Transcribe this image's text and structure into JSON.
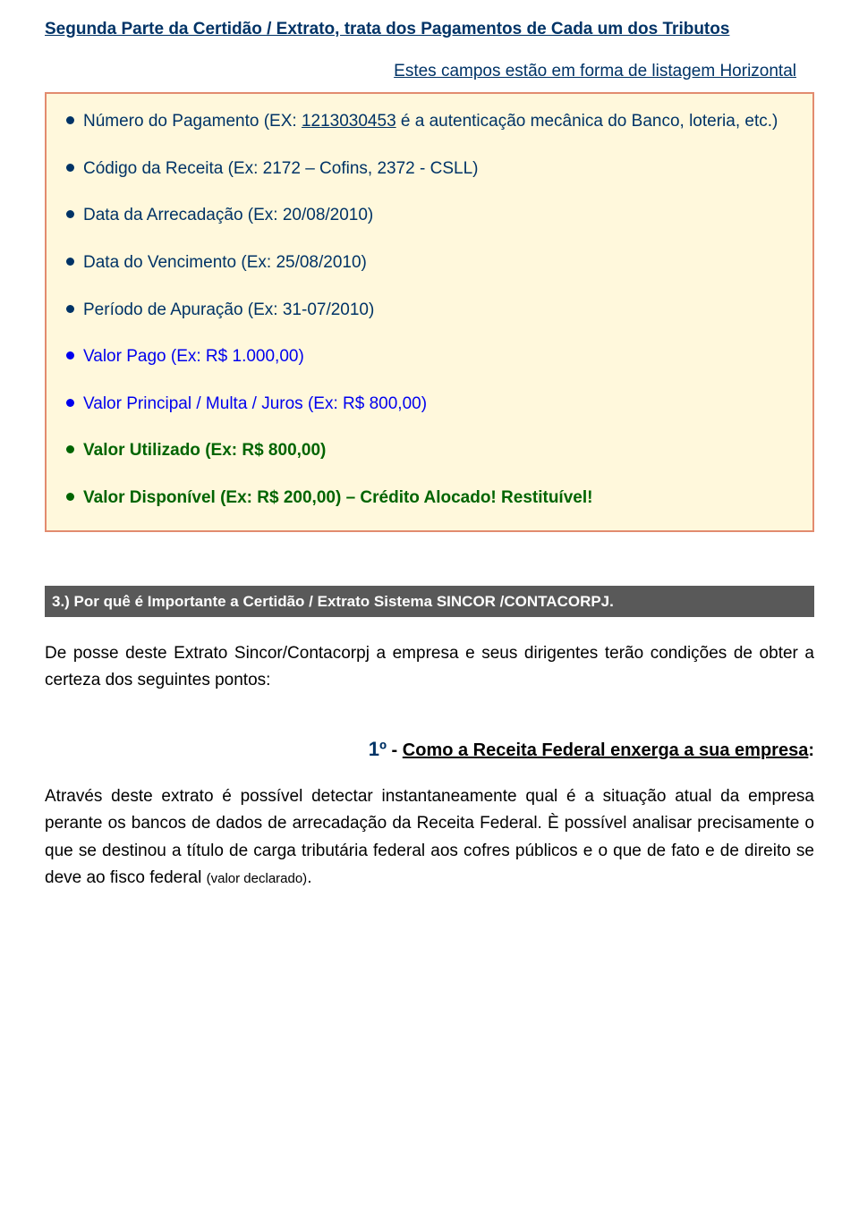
{
  "heading_main": "Segunda Parte da Certidão / Extrato, trata dos Pagamentos de Cada um dos Tributos",
  "sub_note": "Estes campos estão em forma de listagem Horizontal",
  "colors": {
    "dark_blue": "#003366",
    "blue": "#0000ee",
    "green": "#006400",
    "box_bg": "#fff8dc",
    "box_border": "#e28b6f",
    "section_bar_bg": "#595959"
  },
  "bullets": [
    {
      "color": "#003366",
      "text_class": "dark-blue",
      "bold": false,
      "prefix": "Número do Pagamento (EX: ",
      "underline": "1213030453",
      "suffix": " é a autenticação mecânica do Banco, loteria, etc.)"
    },
    {
      "color": "#003366",
      "text_class": "dark-blue",
      "bold": false,
      "text": "Código da Receita (Ex: 2172 – Cofins, 2372 - CSLL)"
    },
    {
      "color": "#003366",
      "text_class": "dark-blue",
      "bold": false,
      "text": "Data da Arrecadação (Ex: 20/08/2010)"
    },
    {
      "color": "#003366",
      "text_class": "dark-blue",
      "bold": false,
      "text": "Data do Vencimento (Ex: 25/08/2010)"
    },
    {
      "color": "#003366",
      "text_class": "dark-blue",
      "bold": false,
      "text": "Período de Apuração (Ex: 31-07/2010)"
    },
    {
      "color": "#0000ee",
      "text_class": "blue",
      "bold": false,
      "text": "Valor Pago (Ex: R$ 1.000,00)"
    },
    {
      "color": "#0000ee",
      "text_class": "blue",
      "bold": false,
      "text": "Valor Principal / Multa / Juros (Ex: R$ 800,00)"
    },
    {
      "color": "#006400",
      "text_class": "green",
      "bold": true,
      "text": "Valor Utilizado (Ex: R$ 800,00)"
    },
    {
      "color": "#006400",
      "text_class": "green",
      "bold": true,
      "text": "Valor Disponível (Ex: R$ 200,00) – Crédito Alocado! Restituível!"
    }
  ],
  "section3_title": "3.) Por quê  é Importante a Certidão / Extrato  Sistema SINCOR /CONTACORPJ.",
  "para1": "De posse deste Extrato Sincor/Contacorpj a empresa e seus dirigentes terão condições de obter a certeza dos seguintes pontos:",
  "numbered": {
    "num": "1º",
    "dash": " - ",
    "rest": "Como a Receita Federal enxerga a sua empresa",
    "colon": ":"
  },
  "body_para_main": "Através deste extrato é possível detectar instantaneamente qual é a situação atual da empresa perante os bancos de dados de arrecadação da Receita Federal. È possível analisar precisamente o que se destinou a título de carga tributária federal aos cofres públicos e o que de fato e de direito se deve ao fisco federal ",
  "body_para_small": "(valor declarado)",
  "body_para_end": "."
}
